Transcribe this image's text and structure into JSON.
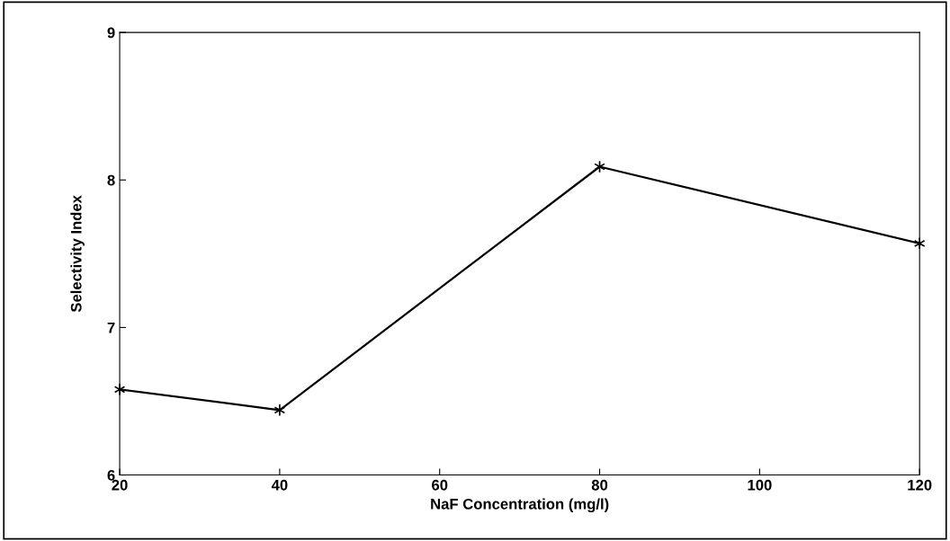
{
  "chart_data": {
    "type": "line",
    "xlabel": "NaF Concentration (mg/l)",
    "ylabel": "Selectivity Index",
    "x": [
      20,
      40,
      80,
      120
    ],
    "series": [
      {
        "color": "#000000",
        "values": [
          6.58,
          6.44,
          8.09,
          7.57
        ]
      }
    ],
    "xlim": [
      20,
      120
    ],
    "xticks": [
      20,
      40,
      60,
      80,
      100,
      120
    ],
    "ylim": [
      6,
      9
    ],
    "yticks": [
      6,
      7,
      8,
      9
    ],
    "grid": false,
    "legend": false,
    "marker": "cross",
    "line_style": "solid"
  }
}
